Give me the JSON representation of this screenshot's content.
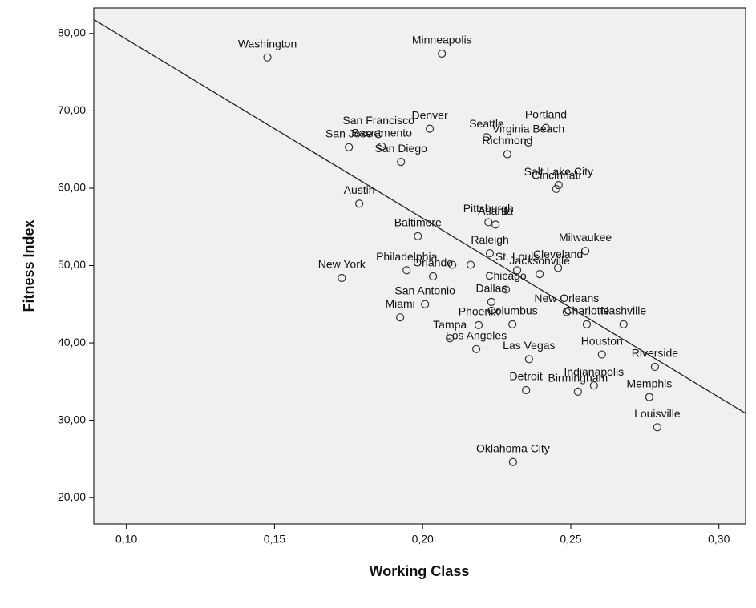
{
  "chart_data": {
    "type": "scatter",
    "xlabel": "Working Class",
    "ylabel": "Fitness Index",
    "xlim": [
      0.089,
      0.309
    ],
    "ylim": [
      16.6,
      83.3
    ],
    "xticks": [
      {
        "value": 0.1,
        "label": "0,10"
      },
      {
        "value": 0.15,
        "label": "0,15"
      },
      {
        "value": 0.2,
        "label": "0,20"
      },
      {
        "value": 0.25,
        "label": "0,25"
      },
      {
        "value": 0.3,
        "label": "0,30"
      }
    ],
    "yticks": [
      {
        "value": 20,
        "label": "20,00"
      },
      {
        "value": 30,
        "label": "30,00"
      },
      {
        "value": 40,
        "label": "40,00"
      },
      {
        "value": 50,
        "label": "50,00"
      },
      {
        "value": 60,
        "label": "60,00"
      },
      {
        "value": 70,
        "label": "70,00"
      },
      {
        "value": 80,
        "label": "80,00"
      }
    ],
    "x": [
      0.1476,
      0.2065,
      0.1851,
      0.2024,
      0.2216,
      0.2416,
      0.1751,
      0.1862,
      0.2357,
      0.2286,
      0.1927,
      0.2459,
      0.2451,
      0.1786,
      0.2222,
      0.2246,
      0.1984,
      0.2549,
      0.2227,
      0.1946,
      0.21,
      0.2162,
      0.2035,
      0.1727,
      0.2319,
      0.2395,
      0.2457,
      0.2281,
      0.2232,
      0.2008,
      0.1924,
      0.2486,
      0.2189,
      0.2303,
      0.2554,
      0.2678,
      0.2092,
      0.2181,
      0.2605,
      0.2359,
      0.2784,
      0.2578,
      0.2524,
      0.2349,
      0.2765,
      0.2792,
      0.2305
    ],
    "values": [
      76.9,
      77.4,
      67.0,
      67.7,
      66.6,
      67.8,
      65.3,
      65.4,
      65.9,
      64.4,
      63.4,
      60.4,
      59.9,
      58.0,
      55.6,
      55.3,
      53.8,
      51.9,
      51.6,
      49.4,
      50.1,
      50.1,
      48.6,
      48.4,
      49.4,
      48.9,
      49.7,
      46.9,
      45.3,
      45.0,
      43.3,
      44.0,
      42.3,
      42.4,
      42.4,
      42.4,
      40.6,
      39.2,
      38.5,
      37.9,
      36.9,
      34.5,
      33.7,
      33.9,
      33.0,
      29.1,
      24.6
    ],
    "point_labels": [
      "Washington",
      "Minneapolis",
      "San Francisco",
      "Denver",
      "Seattle",
      "Portland",
      "San Jose",
      "Sacramento",
      "Virginia Beach",
      "Richmond",
      "San Diego",
      "Salt Lake City",
      "Cincinnati",
      "Austin",
      "Pittsburgh",
      "Atlanta",
      "Baltimore",
      "Milwaukee",
      "Raleigh",
      "Philadelphia",
      null,
      null,
      "Orlando",
      "New York",
      "St. Louis",
      "Jacksonville",
      "Cleveland",
      "Chicago",
      "Dallas",
      "San Antonio",
      "Miami",
      "New Orleans",
      "Phoenix",
      "Columbus",
      "Charlotte",
      "Nashville",
      "Tampa",
      "Los Angeles",
      "Houston",
      "Las Vegas",
      "Riverside",
      "Indianapolis",
      "Birmingham",
      "Detroit",
      "Memphis",
      "Louisville",
      "Oklahoma City"
    ],
    "fit": {
      "x": [
        0.089,
        0.309
      ],
      "values": [
        81.8,
        30.9
      ]
    },
    "background": "#f0f0f0",
    "marker_color": "#333333",
    "line_color": "#222222"
  }
}
